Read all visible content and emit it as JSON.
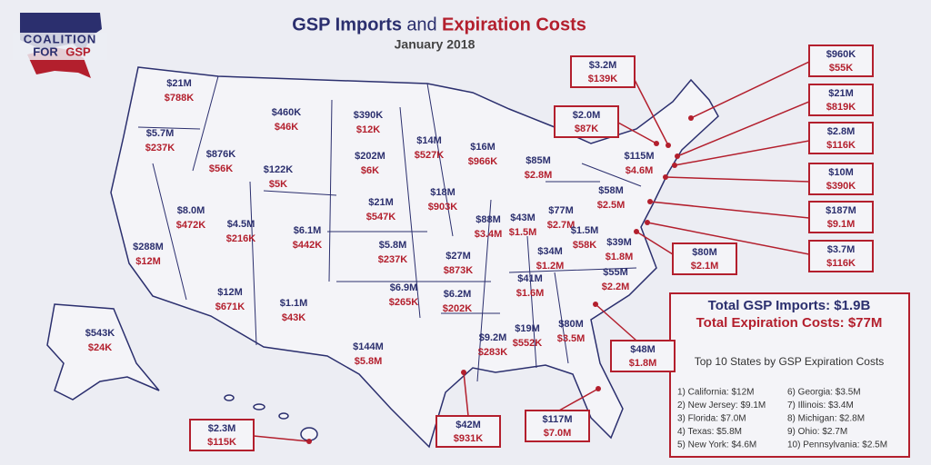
{
  "logo": {
    "line1": "COALITION",
    "line2": "FOR",
    "line3": "GSP"
  },
  "header": {
    "title_part1": "GSP Imports",
    "title_part2": "and",
    "title_part3": "Expiration Costs",
    "subtitle": "January 2018"
  },
  "states": [
    {
      "imports": "$21M",
      "costs": "$788K"
    },
    {
      "imports": "$5.7M",
      "costs": "$237K"
    },
    {
      "imports": "$876K",
      "costs": "$56K"
    },
    {
      "imports": "$460K",
      "costs": "$46K"
    },
    {
      "imports": "$390K",
      "costs": "$12K"
    },
    {
      "imports": "$202M",
      "costs": "$6K"
    },
    {
      "imports": "$122K",
      "costs": "$5K"
    },
    {
      "imports": "$14M",
      "costs": "$527K"
    },
    {
      "imports": "$16M",
      "costs": "$966K"
    },
    {
      "imports": "$85M",
      "costs": "$2.8M"
    },
    {
      "imports": "$8.0M",
      "costs": "$472K"
    },
    {
      "imports": "$4.5M",
      "costs": "$216K"
    },
    {
      "imports": "$6.1M",
      "costs": "$442K"
    },
    {
      "imports": "$21M",
      "costs": "$547K"
    },
    {
      "imports": "$18M",
      "costs": "$903K"
    },
    {
      "imports": "$88M",
      "costs": "$3.4M"
    },
    {
      "imports": "$43M",
      "costs": "$1.5M"
    },
    {
      "imports": "$77M",
      "costs": "$2.7M"
    },
    {
      "imports": "$58M",
      "costs": "$2.5M"
    },
    {
      "imports": "$115M",
      "costs": "$4.6M"
    },
    {
      "imports": "$288M",
      "costs": "$12M"
    },
    {
      "imports": "$5.8M",
      "costs": "$237K"
    },
    {
      "imports": "$27M",
      "costs": "$873K"
    },
    {
      "imports": "$34M",
      "costs": "$1.2M"
    },
    {
      "imports": "$1.5M",
      "costs": "$58K"
    },
    {
      "imports": "$39M",
      "costs": "$1.8M"
    },
    {
      "imports": "$12M",
      "costs": "$671K"
    },
    {
      "imports": "$1.1M",
      "costs": "$43K"
    },
    {
      "imports": "$6.9M",
      "costs": "$265K"
    },
    {
      "imports": "$6.2M",
      "costs": "$202K"
    },
    {
      "imports": "$41M",
      "costs": "$1.6M"
    },
    {
      "imports": "$55M",
      "costs": "$2.2M"
    },
    {
      "imports": "$144M",
      "costs": "$5.8M"
    },
    {
      "imports": "$9.2M",
      "costs": "$283K"
    },
    {
      "imports": "$19M",
      "costs": "$552K"
    },
    {
      "imports": "$80M",
      "costs": "$3.5M"
    },
    {
      "imports": "$543K",
      "costs": "$24K"
    }
  ],
  "callouts": [
    {
      "imports": "$3.2M",
      "costs": "$139K"
    },
    {
      "imports": "$2.0M",
      "costs": "$87K"
    },
    {
      "imports": "$960K",
      "costs": "$55K"
    },
    {
      "imports": "$21M",
      "costs": "$819K"
    },
    {
      "imports": "$2.8M",
      "costs": "$116K"
    },
    {
      "imports": "$10M",
      "costs": "$390K"
    },
    {
      "imports": "$187M",
      "costs": "$9.1M"
    },
    {
      "imports": "$3.7M",
      "costs": "$116K"
    },
    {
      "imports": "$80M",
      "costs": "$2.1M"
    },
    {
      "imports": "$48M",
      "costs": "$1.8M"
    },
    {
      "imports": "$117M",
      "costs": "$7.0M"
    },
    {
      "imports": "$42M",
      "costs": "$931K"
    },
    {
      "imports": "$2.3M",
      "costs": "$115K"
    }
  ],
  "summary": {
    "total_imports": "Total GSP Imports: $1.9B",
    "total_costs": "Total Expiration Costs: $77M",
    "list_title": "Top 10 States by GSP Expiration Costs",
    "items": [
      "1)  California: $12M",
      "2)  New Jersey: $9.1M",
      "3)  Florida: $7.0M",
      "4)  Texas: $5.8M",
      "5)  New York: $4.6M",
      "6)  Georgia: $3.5M",
      "7)  Illinois: $3.4M",
      "8)  Michigan: $2.8M",
      "9)  Ohio: $2.7M",
      "10)  Pennsylvania: $2.5M"
    ]
  }
}
